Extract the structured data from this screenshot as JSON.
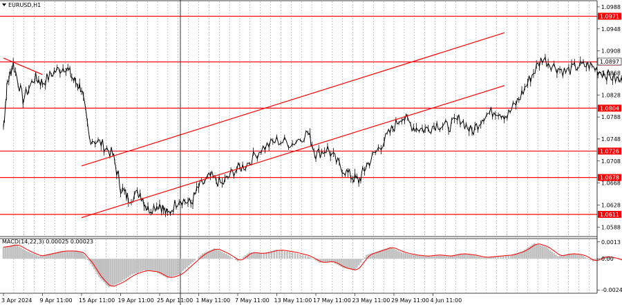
{
  "chart_data": [
    {
      "type": "candlestick",
      "title": "EURUSD,H1",
      "y_ticks": [
        "1.0988",
        "1.0948",
        "1.0908",
        "1.0868",
        "1.0828",
        "1.0788",
        "1.0748",
        "1.0708",
        "1.0668",
        "1.0628",
        "1.0588"
      ],
      "ylim": [
        1.0572,
        1.0998
      ],
      "current_price": "1.0897",
      "x_ticks": [
        "3 Apr 2024",
        "9 Apr 11:00",
        "15 Apr 11:00",
        "19 Apr 11:00",
        "25 Apr 11:00",
        "1 May 11:00",
        "7 May 11:00",
        "13 May 11:00",
        "17 May 11:00",
        "23 May 11:00",
        "29 May 11:00",
        "4 Jun 11:00"
      ],
      "levels": [
        {
          "label": "1.0971",
          "value": 1.0971
        },
        {
          "label": "1.0888",
          "value": 1.0888
        },
        {
          "label": "1.0804",
          "value": 1.0804
        },
        {
          "label": "1.0726",
          "value": 1.0726
        },
        {
          "label": "1.0678",
          "value": 1.0678
        },
        {
          "label": "1.0611",
          "value": 1.0611
        }
      ],
      "trend_lines": [
        {
          "x": [
            "3 Apr 2024",
            "9 Apr 11:00"
          ],
          "y": [
            1.0895,
            1.0865
          ]
        },
        {
          "x": [
            "15 Apr 11:00",
            "5 Jun 16:00"
          ],
          "y": [
            1.0699,
            1.0941
          ]
        },
        {
          "x": [
            "15 Apr 11:00",
            "5 Jun 16:00"
          ],
          "y": [
            1.0605,
            1.0845
          ]
        }
      ],
      "price_path": [
        [
          0,
          1.077
        ],
        [
          0.1,
          1.085
        ],
        [
          0.25,
          1.0885
        ],
        [
          0.5,
          1.082
        ],
        [
          0.8,
          1.086
        ],
        [
          1,
          1.085
        ],
        [
          1.3,
          1.087
        ],
        [
          1.6,
          1.088
        ],
        [
          1.8,
          1.0855
        ],
        [
          2,
          1.084
        ],
        [
          2.2,
          1.075
        ],
        [
          2.5,
          1.074
        ],
        [
          2.8,
          1.072
        ],
        [
          3,
          1.066
        ],
        [
          3.2,
          1.064
        ],
        [
          3.5,
          1.065
        ],
        [
          3.7,
          1.062
        ],
        [
          4,
          1.063
        ],
        [
          4.2,
          1.061
        ],
        [
          4.5,
          1.064
        ],
        [
          4.8,
          1.063
        ],
        [
          5,
          1.066
        ],
        [
          5.3,
          1.068
        ],
        [
          5.6,
          1.0665
        ],
        [
          5.9,
          1.069
        ],
        [
          6.2,
          1.07
        ],
        [
          6.6,
          1.073
        ],
        [
          7,
          1.0745
        ],
        [
          7.4,
          1.074
        ],
        [
          7.8,
          1.076
        ],
        [
          8,
          1.072
        ],
        [
          8.3,
          1.073
        ],
        [
          8.6,
          1.07
        ],
        [
          8.9,
          1.068
        ],
        [
          9.1,
          1.0672
        ],
        [
          9.3,
          1.07
        ],
        [
          9.6,
          1.073
        ],
        [
          9.9,
          1.076
        ],
        [
          10.2,
          1.079
        ],
        [
          10.5,
          1.077
        ],
        [
          10.8,
          1.0765
        ],
        [
          11.1,
          1.0775
        ],
        [
          11.4,
          1.077
        ],
        [
          11.7,
          1.0785
        ],
        [
          12,
          1.076
        ],
        [
          12.3,
          1.079
        ],
        [
          12.6,
          1.08
        ],
        [
          12.9,
          1.079
        ],
        [
          13.2,
          1.082
        ],
        [
          13.5,
          1.086
        ],
        [
          13.8,
          1.0895
        ],
        [
          14.1,
          1.088
        ],
        [
          14.4,
          1.087
        ],
        [
          14.7,
          1.088
        ],
        [
          15,
          1.0882
        ],
        [
          15.3,
          1.087
        ],
        [
          15.6,
          1.086
        ],
        [
          15.9,
          1.085
        ],
        [
          16.2,
          1.084
        ],
        [
          16.5,
          1.086
        ],
        [
          16.8,
          1.083
        ],
        [
          17.1,
          1.082
        ],
        [
          17.4,
          1.084
        ],
        [
          17.7,
          1.085
        ],
        [
          18,
          1.088
        ],
        [
          18.3,
          1.086
        ],
        [
          18.6,
          1.083
        ],
        [
          18.9,
          1.081
        ],
        [
          19.2,
          1.079
        ],
        [
          19.5,
          1.08
        ],
        [
          19.8,
          1.083
        ],
        [
          20.1,
          1.088
        ],
        [
          20.4,
          1.0915
        ],
        [
          20.6,
          1.09
        ],
        [
          20.9,
          1.088
        ],
        [
          21.2,
          1.0875
        ],
        [
          21.5,
          1.0885
        ],
        [
          21.8,
          1.0895
        ],
        [
          22,
          1.09
        ]
      ]
    },
    {
      "type": "macd",
      "title": "MACD(14,22,3) 0.00025 0.00023",
      "y_ticks": [
        "0.0013",
        "0.00",
        "-0.0024"
      ],
      "ylim": [
        -0.0026,
        0.0015
      ],
      "histogram_path": [
        [
          0,
          0.0009
        ],
        [
          0.3,
          0.0011
        ],
        [
          0.6,
          0.0006
        ],
        [
          0.9,
          0.0002
        ],
        [
          1.2,
          0.0004
        ],
        [
          1.5,
          0.0006
        ],
        [
          1.8,
          0.0006
        ],
        [
          2,
          0.0005
        ],
        [
          2.2,
          -0.0002
        ],
        [
          2.45,
          -0.0014
        ],
        [
          2.7,
          -0.0022
        ],
        [
          3,
          -0.0018
        ],
        [
          3.3,
          -0.0012
        ],
        [
          3.6,
          -0.0009
        ],
        [
          3.9,
          -0.001
        ],
        [
          4.2,
          -0.0015
        ],
        [
          4.5,
          -0.0012
        ],
        [
          4.8,
          -0.0004
        ],
        [
          5.1,
          0.0004
        ],
        [
          5.4,
          0.0008
        ],
        [
          5.7,
          0.0004
        ],
        [
          6,
          -0.0002
        ],
        [
          6.3,
          0.0005
        ],
        [
          6.6,
          0.0004
        ],
        [
          7,
          0.0007
        ],
        [
          7.4,
          0.0005
        ],
        [
          7.8,
          0.0002
        ],
        [
          8.1,
          -0.0003
        ],
        [
          8.4,
          -0.0002
        ],
        [
          8.7,
          -0.0007
        ],
        [
          9,
          -0.0009
        ],
        [
          9.3,
          0.0003
        ],
        [
          9.6,
          0.0006
        ],
        [
          9.9,
          0.0009
        ],
        [
          10.2,
          0.0005
        ],
        [
          10.5,
          0.0003
        ],
        [
          10.8,
          0.0002
        ],
        [
          11.1,
          0.0003
        ],
        [
          11.4,
          0.0002
        ],
        [
          11.7,
          0.0004
        ],
        [
          12,
          0.0003
        ],
        [
          12.3,
          0.0001
        ],
        [
          12.6,
          0.0002
        ],
        [
          13,
          0.0003
        ],
        [
          13.3,
          0.0006
        ],
        [
          13.6,
          0.0012
        ],
        [
          13.9,
          0.0009
        ],
        [
          14.2,
          0.0002
        ],
        [
          14.5,
          0.0004
        ],
        [
          14.8,
          0.0003
        ],
        [
          15.1,
          -0.0002
        ],
        [
          15.4,
          0.0002
        ],
        [
          15.7,
          0.0
        ],
        [
          16,
          -0.0003
        ],
        [
          16.3,
          -0.0004
        ],
        [
          16.6,
          -0.0002
        ],
        [
          16.9,
          0.0002
        ],
        [
          17.2,
          0.0004
        ],
        [
          17.5,
          0.0003
        ],
        [
          17.8,
          0.0005
        ],
        [
          18.1,
          0.0004
        ],
        [
          18.4,
          -0.0002
        ],
        [
          18.7,
          -0.0008
        ],
        [
          19,
          -0.0012
        ],
        [
          19.3,
          -0.0005
        ],
        [
          19.6,
          0.0006
        ],
        [
          19.9,
          0.0009
        ],
        [
          20.2,
          0.0006
        ],
        [
          20.5,
          0.001
        ],
        [
          20.8,
          0.0003
        ],
        [
          21.1,
          0.0002
        ],
        [
          21.4,
          0.0004
        ],
        [
          21.7,
          0.0003
        ],
        [
          22,
          0.0002
        ]
      ]
    }
  ],
  "colors": {
    "background": "#ffffff",
    "price": "#000000",
    "level_line": "#ff0000",
    "trend_line": "#ff0000",
    "label_bg": "#ff0000",
    "label_text": "#ffffff",
    "grid": "#8c8c8c",
    "histogram": "#c0c0c0",
    "signal": "#ff0000"
  }
}
